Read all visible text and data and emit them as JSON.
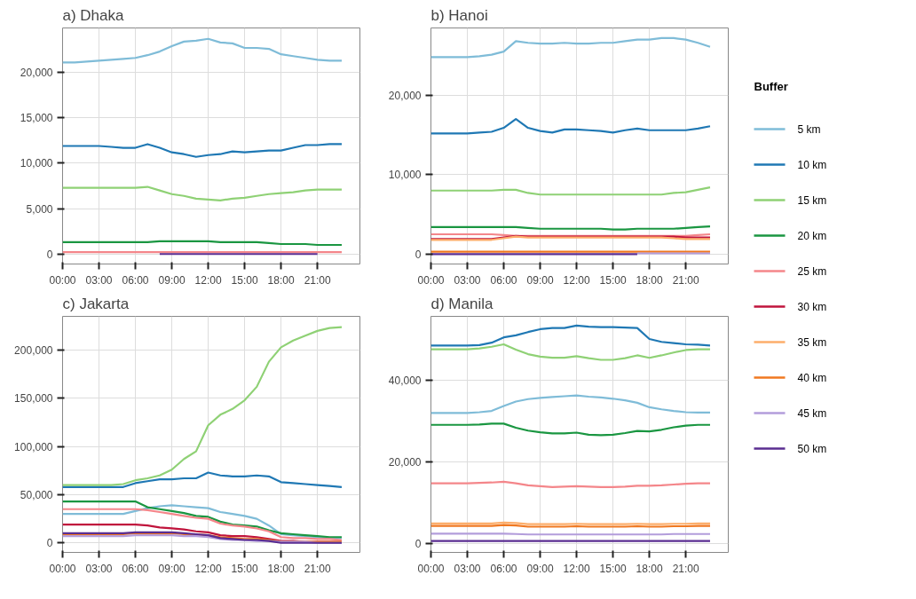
{
  "chart_data": [
    {
      "type": "line",
      "title": "a) Dhaka",
      "grid": true,
      "line_style": "solid",
      "legend": "right",
      "legend_title": "Buffer",
      "x": [
        0,
        1,
        2,
        3,
        4,
        5,
        6,
        7,
        8,
        9,
        10,
        11,
        12,
        13,
        14,
        15,
        16,
        17,
        18,
        19,
        20,
        21,
        22,
        23
      ],
      "xlim": [
        0,
        24.5
      ],
      "xticks": [
        {
          "value": 0,
          "label": "00:00"
        },
        {
          "value": 3,
          "label": "03:00"
        },
        {
          "value": 6,
          "label": "06:00"
        },
        {
          "value": 9,
          "label": "09:00"
        },
        {
          "value": 12,
          "label": "12:00"
        },
        {
          "value": 15,
          "label": "15:00"
        },
        {
          "value": 18,
          "label": "18:00"
        },
        {
          "value": 21,
          "label": "21:00"
        }
      ],
      "ylim": [
        -1100,
        24900
      ],
      "yticks": [
        0,
        {
          "value": 5000,
          "label": "5,000"
        },
        {
          "value": 10000,
          "label": "10,000"
        },
        {
          "value": 15000,
          "label": "15,000"
        },
        {
          "value": 20000,
          "label": "20,000"
        }
      ],
      "series": [
        {
          "name": "5 km",
          "color": "#7fbcd8",
          "values": [
            21100,
            21100,
            21200,
            21300,
            21400,
            21500,
            21600,
            21900,
            22300,
            22900,
            23400,
            23500,
            23700,
            23300,
            23200,
            22700,
            22700,
            22600,
            22000,
            21800,
            21600,
            21400,
            21300,
            21300
          ]
        },
        {
          "name": "10 km",
          "color": "#1f78b4",
          "values": [
            11900,
            11900,
            11900,
            11900,
            11800,
            11700,
            11700,
            12100,
            11700,
            11200,
            11000,
            10700,
            10900,
            11000,
            11300,
            11200,
            11300,
            11400,
            11400,
            11700,
            12000,
            12000,
            12100,
            12100
          ]
        },
        {
          "name": "15 km",
          "color": "#8fd175",
          "values": [
            7300,
            7300,
            7300,
            7300,
            7300,
            7300,
            7300,
            7400,
            7000,
            6600,
            6400,
            6100,
            6000,
            5900,
            6100,
            6200,
            6400,
            6600,
            6700,
            6800,
            7000,
            7100,
            7100,
            7100
          ]
        },
        {
          "name": "20 km",
          "color": "#1a9641",
          "values": [
            1300,
            1300,
            1300,
            1300,
            1300,
            1300,
            1300,
            1300,
            1400,
            1400,
            1400,
            1400,
            1400,
            1300,
            1300,
            1300,
            1300,
            1200,
            1100,
            1100,
            1100,
            1000,
            1000,
            1000
          ]
        },
        {
          "name": "25 km",
          "color": "#f4868a",
          "values": [
            200,
            200,
            200,
            200,
            200,
            200,
            200,
            200,
            200,
            200,
            200,
            200,
            200,
            200,
            200,
            200,
            200,
            200,
            200,
            200,
            200,
            200,
            200,
            200
          ]
        },
        {
          "name": "30 km",
          "color": "#c0143c",
          "values": [
            null,
            null,
            null,
            null,
            null,
            null,
            null,
            null,
            null,
            null,
            null,
            null,
            null,
            null,
            null,
            null,
            null,
            null,
            null,
            null,
            null,
            null,
            null,
            null
          ]
        },
        {
          "name": "35 km",
          "color": "#fdae6b",
          "values": [
            null,
            null,
            null,
            null,
            null,
            null,
            null,
            null,
            null,
            null,
            null,
            null,
            null,
            null,
            null,
            null,
            null,
            null,
            null,
            null,
            null,
            null,
            null,
            null
          ]
        },
        {
          "name": "40 km",
          "color": "#f07820",
          "values": [
            null,
            null,
            null,
            null,
            null,
            null,
            null,
            null,
            null,
            null,
            null,
            null,
            null,
            null,
            null,
            null,
            null,
            null,
            null,
            null,
            null,
            null,
            null,
            null
          ]
        },
        {
          "name": "45 km",
          "color": "#b39ddb",
          "values": [
            null,
            null,
            null,
            null,
            null,
            null,
            null,
            null,
            null,
            null,
            null,
            null,
            null,
            null,
            null,
            null,
            null,
            null,
            null,
            null,
            null,
            null,
            null,
            null
          ]
        },
        {
          "name": "50 km",
          "color": "#5a2d91",
          "values": [
            null,
            null,
            null,
            null,
            null,
            null,
            null,
            null,
            0,
            0,
            0,
            0,
            0,
            0,
            0,
            0,
            0,
            0,
            0,
            0,
            0,
            0,
            null,
            null
          ]
        }
      ]
    },
    {
      "type": "line",
      "title": "b) Hanoi",
      "grid": true,
      "line_style": "solid",
      "x": [
        0,
        1,
        2,
        3,
        4,
        5,
        6,
        7,
        8,
        9,
        10,
        11,
        12,
        13,
        14,
        15,
        16,
        17,
        18,
        19,
        20,
        21,
        22,
        23
      ],
      "xlim": [
        0,
        24.5
      ],
      "xticks": [
        {
          "value": 0,
          "label": "00:00"
        },
        {
          "value": 3,
          "label": "03:00"
        },
        {
          "value": 6,
          "label": "06:00"
        },
        {
          "value": 9,
          "label": "09:00"
        },
        {
          "value": 12,
          "label": "12:00"
        },
        {
          "value": 15,
          "label": "15:00"
        },
        {
          "value": 18,
          "label": "18:00"
        },
        {
          "value": 21,
          "label": "21:00"
        }
      ],
      "ylim": [
        -1240,
        28470
      ],
      "yticks": [
        0,
        {
          "value": 10000,
          "label": "10,000"
        },
        {
          "value": 20000,
          "label": "20,000"
        }
      ],
      "series": [
        {
          "color": "#7fbcd8",
          "values": [
            24800,
            24800,
            24800,
            24800,
            24900,
            25100,
            25500,
            26800,
            26600,
            26500,
            26500,
            26600,
            26500,
            26500,
            26600,
            26600,
            26800,
            27000,
            27000,
            27200,
            27200,
            27000,
            26600,
            26100
          ]
        },
        {
          "color": "#1f78b4",
          "values": [
            15200,
            15200,
            15200,
            15200,
            15300,
            15400,
            15900,
            17000,
            15900,
            15500,
            15300,
            15700,
            15700,
            15600,
            15500,
            15300,
            15600,
            15800,
            15600,
            15600,
            15600,
            15600,
            15800,
            16100
          ]
        },
        {
          "color": "#8fd175",
          "values": [
            8000,
            8000,
            8000,
            8000,
            8000,
            8000,
            8100,
            8100,
            7700,
            7500,
            7500,
            7500,
            7500,
            7500,
            7500,
            7500,
            7500,
            7500,
            7500,
            7500,
            7700,
            7800,
            8100,
            8400
          ]
        },
        {
          "color": "#1a9641",
          "values": [
            3400,
            3400,
            3400,
            3400,
            3400,
            3400,
            3400,
            3400,
            3300,
            3200,
            3200,
            3200,
            3200,
            3200,
            3200,
            3100,
            3100,
            3200,
            3200,
            3200,
            3200,
            3300,
            3400,
            3500
          ]
        },
        {
          "color": "#f4868a",
          "values": [
            2500,
            2500,
            2500,
            2500,
            2500,
            2500,
            2400,
            2300,
            2300,
            2300,
            2300,
            2300,
            2300,
            2300,
            2300,
            2300,
            2300,
            2300,
            2300,
            2300,
            2300,
            2300,
            2400,
            2500
          ]
        },
        {
          "color": "#c0143c",
          "values": [
            1900,
            1900,
            1900,
            1900,
            1900,
            1900,
            2100,
            2300,
            2200,
            2200,
            2200,
            2200,
            2200,
            2200,
            2200,
            2200,
            2200,
            2200,
            2200,
            2200,
            2200,
            2100,
            2100,
            2100
          ]
        },
        {
          "color": "#fdae6b",
          "values": [
            1800,
            1800,
            1800,
            1800,
            1800,
            1800,
            2000,
            2200,
            2100,
            2100,
            2100,
            2100,
            2100,
            2100,
            2100,
            2100,
            2100,
            2100,
            2100,
            2100,
            2000,
            1900,
            1900,
            1900
          ]
        },
        {
          "color": "#f07820",
          "values": [
            300,
            300,
            300,
            300,
            300,
            300,
            300,
            300,
            300,
            300,
            300,
            300,
            300,
            300,
            300,
            300,
            300,
            300,
            300,
            300,
            300,
            300,
            300,
            300
          ]
        },
        {
          "color": "#b39ddb",
          "values": [
            null,
            null,
            null,
            null,
            null,
            null,
            null,
            null,
            null,
            null,
            null,
            null,
            null,
            null,
            null,
            null,
            null,
            100,
            100,
            100,
            100,
            100,
            100,
            100
          ]
        },
        {
          "color": "#5a2d91",
          "values": [
            0,
            0,
            0,
            0,
            0,
            0,
            0,
            0,
            0,
            0,
            0,
            0,
            0,
            0,
            0,
            0,
            0,
            0,
            null,
            null,
            null,
            null,
            null,
            null
          ]
        }
      ]
    },
    {
      "type": "line",
      "title": "c) Jakarta",
      "grid": true,
      "line_style": "solid",
      "x": [
        0,
        1,
        2,
        3,
        4,
        5,
        6,
        7,
        8,
        9,
        10,
        11,
        12,
        13,
        14,
        15,
        16,
        17,
        18,
        19,
        20,
        21,
        22,
        23
      ],
      "xlim": [
        0,
        24.5
      ],
      "xticks": [
        {
          "value": 0,
          "label": "00:00"
        },
        {
          "value": 3,
          "label": "03:00"
        },
        {
          "value": 6,
          "label": "06:00"
        },
        {
          "value": 9,
          "label": "09:00"
        },
        {
          "value": 12,
          "label": "12:00"
        },
        {
          "value": 15,
          "label": "15:00"
        },
        {
          "value": 18,
          "label": "18:00"
        },
        {
          "value": 21,
          "label": "21:00"
        }
      ],
      "ylim": [
        -9900,
        235100
      ],
      "yticks": [
        0,
        {
          "value": 50000,
          "label": "50,000"
        },
        {
          "value": 100000,
          "label": "100,000"
        },
        {
          "value": 150000,
          "label": "150,000"
        },
        {
          "value": 200000,
          "label": "200,000"
        }
      ],
      "series": [
        {
          "color": "#7fbcd8",
          "values": [
            30000,
            30000,
            30000,
            30000,
            30000,
            30000,
            33000,
            36000,
            38000,
            39000,
            38000,
            37000,
            36000,
            32000,
            30000,
            28000,
            25000,
            18000,
            9000,
            8000,
            7000,
            6000,
            5000,
            5000
          ]
        },
        {
          "color": "#1f78b4",
          "values": [
            58000,
            58000,
            58000,
            58000,
            58000,
            58000,
            62000,
            64000,
            66000,
            66000,
            67000,
            67000,
            73000,
            70000,
            69000,
            69000,
            70000,
            69000,
            63000,
            62000,
            61000,
            60000,
            59000,
            58000
          ]
        },
        {
          "color": "#8fd175",
          "values": [
            60000,
            60000,
            60000,
            60000,
            60000,
            61000,
            65000,
            67000,
            70000,
            76000,
            87000,
            95000,
            122000,
            133000,
            139000,
            148000,
            162000,
            188000,
            203000,
            210000,
            215000,
            220000,
            223000,
            224000
          ]
        },
        {
          "color": "#1a9641",
          "values": [
            43000,
            43000,
            43000,
            43000,
            43000,
            43000,
            43000,
            37000,
            35000,
            33000,
            31000,
            28000,
            27000,
            22000,
            19000,
            18000,
            17000,
            13000,
            10000,
            9000,
            8000,
            7000,
            6000,
            6000
          ]
        },
        {
          "color": "#f4868a",
          "values": [
            35000,
            35000,
            35000,
            35000,
            35000,
            35000,
            35000,
            34000,
            32000,
            30000,
            28000,
            26000,
            25000,
            20000,
            18000,
            17000,
            15000,
            12000,
            6000,
            5000,
            5000,
            4000,
            4000,
            3000
          ]
        },
        {
          "color": "#c0143c",
          "values": [
            19000,
            19000,
            19000,
            19000,
            19000,
            19000,
            19000,
            18000,
            16000,
            15000,
            14000,
            12000,
            11000,
            8000,
            7000,
            7000,
            6000,
            4000,
            2000,
            2000,
            1000,
            1000,
            1000,
            1000
          ]
        },
        {
          "color": "#fdae6b",
          "values": [
            null,
            null,
            null,
            null,
            null,
            null,
            null,
            null,
            null,
            null,
            null,
            null,
            null,
            null,
            null,
            null,
            null,
            null,
            null,
            null,
            null,
            null,
            null,
            null
          ]
        },
        {
          "color": "#f07820",
          "values": [
            9000,
            9000,
            9000,
            9000,
            9000,
            9000,
            10000,
            10000,
            10000,
            10000,
            9000,
            9000,
            8000,
            6000,
            5000,
            4000,
            4000,
            3000,
            1000,
            1000,
            1000,
            1000,
            1000,
            1000
          ]
        },
        {
          "color": "#b39ddb",
          "values": [
            7000,
            7000,
            7000,
            7000,
            7000,
            7000,
            8000,
            8000,
            8000,
            8000,
            7000,
            7000,
            6000,
            4000,
            3000,
            3000,
            2000,
            2000,
            1000,
            1000,
            1000,
            0,
            0,
            0
          ]
        },
        {
          "color": "#5a2d91",
          "values": [
            10000,
            10000,
            10000,
            10000,
            10000,
            10000,
            11000,
            11000,
            11000,
            11000,
            10000,
            9000,
            8000,
            5000,
            4000,
            3000,
            3000,
            2000,
            0,
            0,
            0,
            0,
            0,
            0
          ]
        }
      ]
    },
    {
      "type": "line",
      "title": "d) Manila",
      "grid": true,
      "line_style": "solid",
      "x": [
        0,
        1,
        2,
        3,
        4,
        5,
        6,
        7,
        8,
        9,
        10,
        11,
        12,
        13,
        14,
        15,
        16,
        17,
        18,
        19,
        20,
        21,
        22,
        23
      ],
      "xlim": [
        0,
        24.5
      ],
      "xticks": [
        {
          "value": 0,
          "label": "00:00"
        },
        {
          "value": 3,
          "label": "03:00"
        },
        {
          "value": 6,
          "label": "06:00"
        },
        {
          "value": 9,
          "label": "09:00"
        },
        {
          "value": 12,
          "label": "12:00"
        },
        {
          "value": 15,
          "label": "15:00"
        },
        {
          "value": 18,
          "label": "18:00"
        },
        {
          "value": 21,
          "label": "21:00"
        }
      ],
      "ylim": [
        -2100,
        55640
      ],
      "yticks": [
        0,
        {
          "value": 20000,
          "label": "20,000"
        },
        {
          "value": 40000,
          "label": "40,000"
        }
      ],
      "series": [
        {
          "color": "#7fbcd8",
          "values": [
            32000,
            32000,
            32000,
            32000,
            32200,
            32500,
            33700,
            34800,
            35400,
            35700,
            35900,
            36100,
            36300,
            36000,
            35800,
            35500,
            35100,
            34500,
            33400,
            32900,
            32500,
            32200,
            32100,
            32100
          ]
        },
        {
          "color": "#1f78b4",
          "values": [
            48500,
            48500,
            48500,
            48500,
            48600,
            49200,
            50500,
            51000,
            51800,
            52500,
            52800,
            52800,
            53400,
            53100,
            53000,
            53000,
            52900,
            52800,
            50100,
            49400,
            49100,
            48800,
            48700,
            48500
          ]
        },
        {
          "color": "#8fd175",
          "values": [
            47600,
            47600,
            47600,
            47600,
            47800,
            48200,
            48800,
            47500,
            46400,
            45800,
            45500,
            45500,
            45900,
            45400,
            45000,
            45000,
            45400,
            46100,
            45500,
            46100,
            46800,
            47400,
            47600,
            47600
          ]
        },
        {
          "color": "#1a9641",
          "values": [
            29100,
            29100,
            29100,
            29100,
            29200,
            29400,
            29400,
            28400,
            27700,
            27300,
            27000,
            27000,
            27200,
            26700,
            26600,
            26700,
            27100,
            27600,
            27500,
            27900,
            28500,
            28900,
            29100,
            29100
          ]
        },
        {
          "color": "#f4868a",
          "values": [
            14800,
            14800,
            14800,
            14800,
            14900,
            15000,
            15200,
            14800,
            14300,
            14100,
            13900,
            14000,
            14100,
            14000,
            13900,
            13900,
            14000,
            14200,
            14200,
            14300,
            14500,
            14700,
            14800,
            14800
          ]
        },
        {
          "color": "#c0143c",
          "values": [
            null,
            null,
            null,
            null,
            null,
            null,
            null,
            null,
            null,
            null,
            null,
            null,
            null,
            null,
            null,
            null,
            null,
            null,
            null,
            null,
            null,
            null,
            null,
            null
          ]
        },
        {
          "color": "#fdae6b",
          "values": [
            5000,
            5000,
            5000,
            5000,
            5000,
            5000,
            5200,
            5100,
            4800,
            4800,
            4800,
            4800,
            4900,
            4800,
            4800,
            4800,
            4800,
            4900,
            4800,
            4800,
            4900,
            4900,
            5000,
            5000
          ]
        },
        {
          "color": "#f07820",
          "values": [
            4400,
            4400,
            4400,
            4400,
            4400,
            4400,
            4600,
            4500,
            4200,
            4200,
            4200,
            4200,
            4300,
            4200,
            4200,
            4200,
            4200,
            4300,
            4200,
            4200,
            4300,
            4300,
            4400,
            4400
          ]
        },
        {
          "color": "#b39ddb",
          "values": [
            2500,
            2500,
            2500,
            2500,
            2500,
            2500,
            2500,
            2400,
            2300,
            2300,
            2300,
            2300,
            2300,
            2300,
            2300,
            2300,
            2300,
            2300,
            2300,
            2300,
            2400,
            2400,
            2400,
            2400
          ]
        },
        {
          "color": "#5a2d91",
          "values": [
            700,
            700,
            700,
            700,
            700,
            700,
            700,
            700,
            700,
            700,
            700,
            700,
            700,
            700,
            700,
            700,
            700,
            700,
            700,
            700,
            700,
            700,
            700,
            700
          ]
        }
      ]
    }
  ]
}
